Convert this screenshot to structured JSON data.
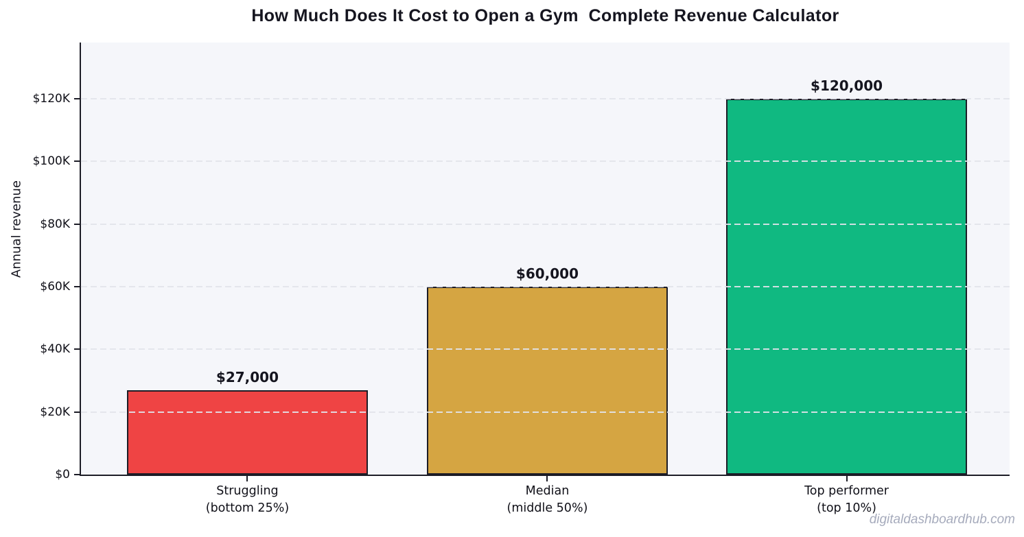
{
  "page": {
    "watermark": "digitaldashboardhub.com"
  },
  "chart_data": {
    "type": "bar",
    "title": "How Much Does It Cost to Open a Gym  Complete Revenue Calculator",
    "xlabel": "",
    "ylabel": "Annual revenue",
    "ylim": [
      0,
      138000
    ],
    "grid": "horizontal dashed lines, drawn over bars",
    "legend": "none",
    "plot_background": "#f5f6fa",
    "bar_edge_color": "#1c1c26",
    "bars": [
      {
        "category_lines": [
          "Struggling",
          "(bottom 25%)"
        ],
        "value": 27000,
        "label": "$27,000",
        "color": "#ef4444"
      },
      {
        "category_lines": [
          "Median",
          "(middle 50%)"
        ],
        "value": 60000,
        "label": "$60,000",
        "color": "#d5a542"
      },
      {
        "category_lines": [
          "Top performer",
          "(top 10%)"
        ],
        "value": 120000,
        "label": "$120,000",
        "color": "#10b981"
      }
    ],
    "yticks": [
      {
        "value": 0,
        "label": "$0"
      },
      {
        "value": 20000,
        "label": "$20K"
      },
      {
        "value": 40000,
        "label": "$40K"
      },
      {
        "value": 60000,
        "label": "$60K"
      },
      {
        "value": 80000,
        "label": "$80K"
      },
      {
        "value": 100000,
        "label": "$100K"
      },
      {
        "value": 120000,
        "label": "$120K"
      }
    ]
  }
}
